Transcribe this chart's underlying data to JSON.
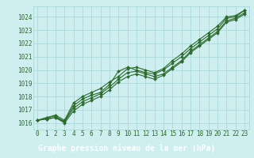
{
  "title": "Graphe pression niveau de la mer (hPa)",
  "xlabel_hours": [
    0,
    1,
    2,
    3,
    4,
    5,
    6,
    7,
    8,
    9,
    10,
    11,
    12,
    13,
    14,
    15,
    16,
    17,
    18,
    19,
    20,
    21,
    22,
    23
  ],
  "ylim": [
    1015.5,
    1024.8
  ],
  "xlim": [
    -0.5,
    23.5
  ],
  "yticks": [
    1016,
    1017,
    1018,
    1019,
    1020,
    1021,
    1022,
    1023,
    1024
  ],
  "line1": [
    1016.2,
    1016.4,
    1016.5,
    1016.1,
    1017.3,
    1017.8,
    1018.1,
    1018.3,
    1018.9,
    1019.9,
    1020.2,
    1020.0,
    1019.8,
    1019.7,
    1020.0,
    1020.5,
    1021.0,
    1021.6,
    1022.1,
    1022.6,
    1023.1,
    1023.9,
    1024.0,
    1024.5
  ],
  "line2": [
    1016.2,
    1016.3,
    1016.4,
    1016.1,
    1017.1,
    1017.6,
    1017.9,
    1018.2,
    1018.7,
    1019.3,
    1019.8,
    1019.9,
    1019.7,
    1019.5,
    1019.7,
    1020.2,
    1020.7,
    1021.4,
    1021.9,
    1022.4,
    1022.9,
    1023.7,
    1023.9,
    1024.3
  ],
  "line3": [
    1016.2,
    1016.3,
    1016.4,
    1016.0,
    1016.9,
    1017.4,
    1017.7,
    1018.0,
    1018.5,
    1019.1,
    1019.5,
    1019.7,
    1019.5,
    1019.3,
    1019.6,
    1020.1,
    1020.6,
    1021.3,
    1021.8,
    1022.3,
    1022.8,
    1023.6,
    1023.8,
    1024.2
  ],
  "line4": [
    1016.2,
    1016.4,
    1016.6,
    1016.2,
    1017.5,
    1018.0,
    1018.3,
    1018.6,
    1019.1,
    1019.5,
    1020.1,
    1020.2,
    1020.0,
    1019.8,
    1020.1,
    1020.7,
    1021.2,
    1021.8,
    1022.3,
    1022.8,
    1023.3,
    1024.0,
    1024.1,
    1024.5
  ],
  "line_color": "#2d6a2d",
  "marker": "D",
  "markersize": 2.0,
  "bg_color": "#ceeef0",
  "grid_color": "#a8d8da",
  "title_bg_color": "#3a7a3a",
  "title_color": "#ffffff",
  "title_fontsize": 7.0,
  "tick_fontsize": 5.5,
  "tick_color": "#2d6a2d"
}
